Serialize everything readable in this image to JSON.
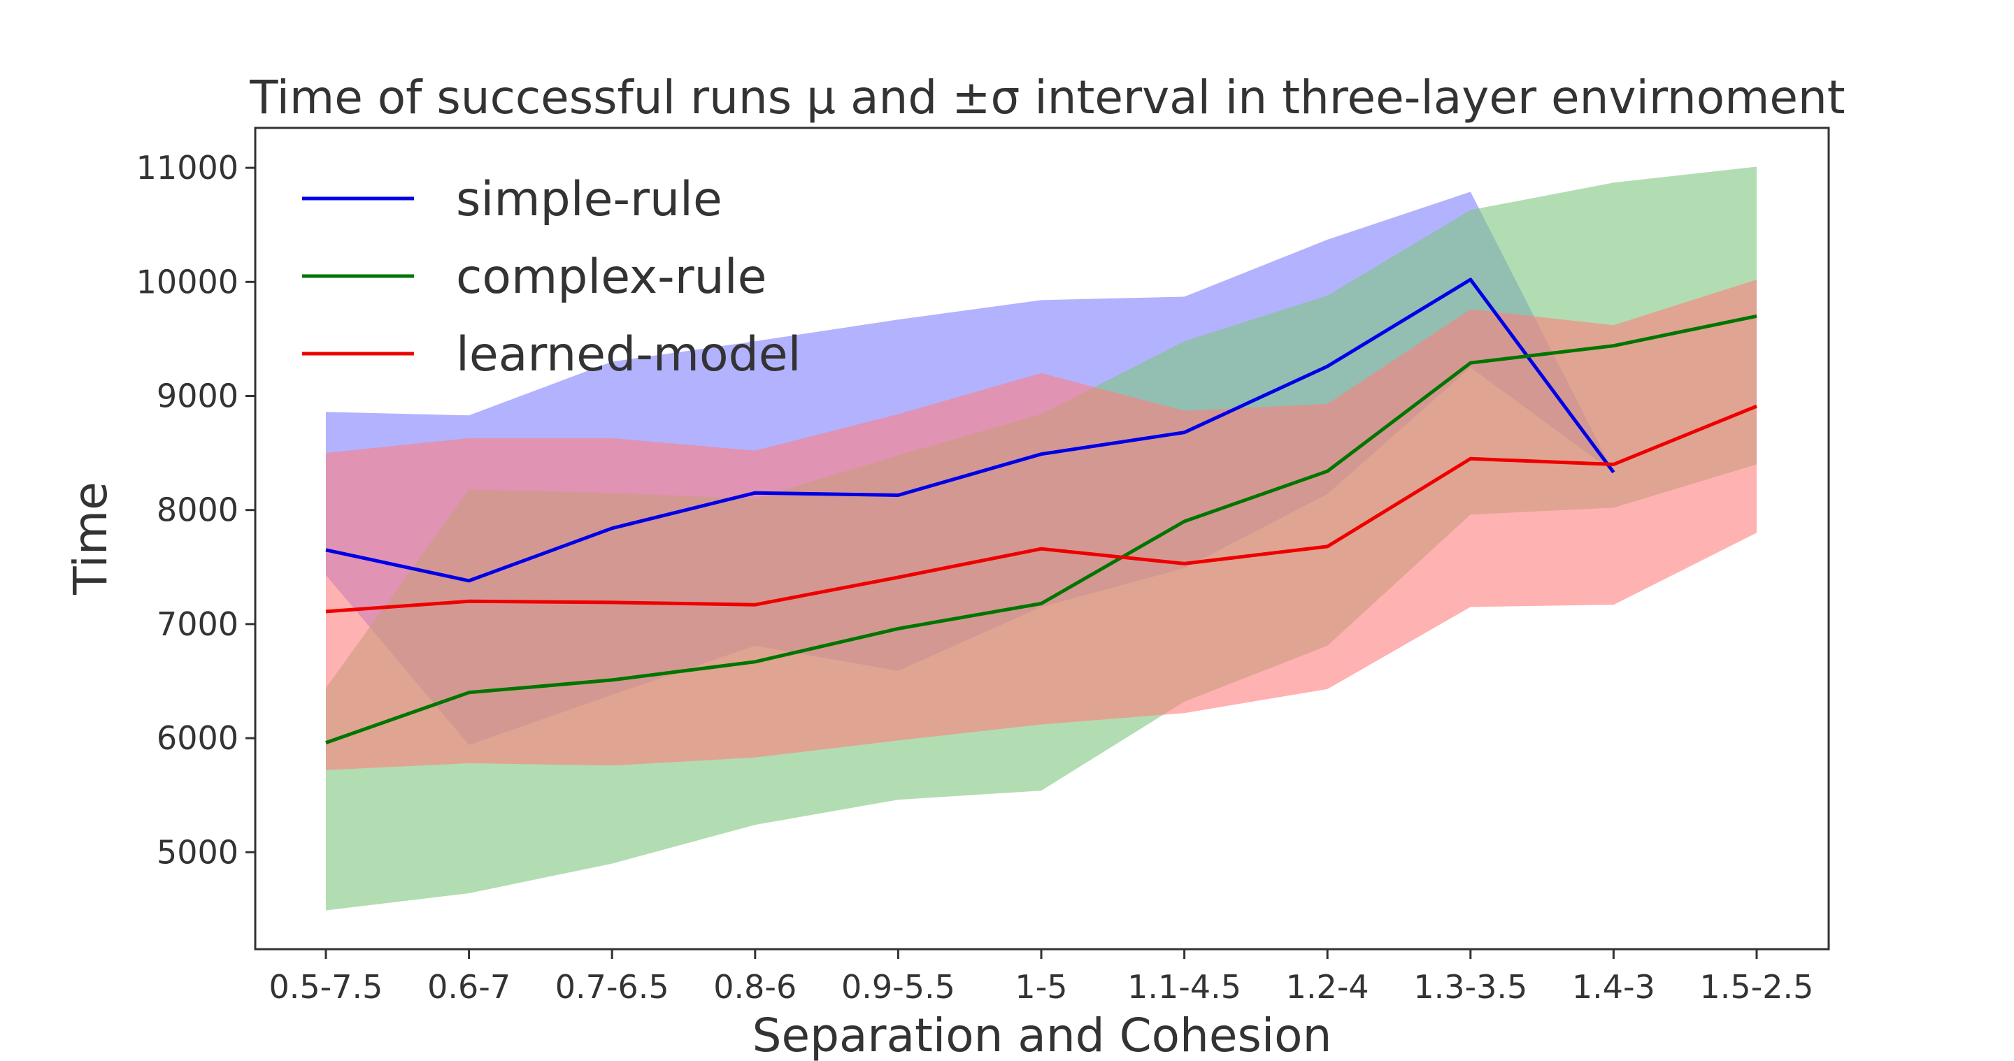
{
  "chart_data": {
    "type": "line",
    "title": "Time of successful runs μ and ±σ interval in three-layer envirnoment",
    "xlabel": "Separation and Cohesion",
    "ylabel": "Time",
    "categories": [
      "0.5-7.5",
      "0.6-7",
      "0.7-6.5",
      "0.8-6",
      "0.9-5.5",
      "1-5",
      "1.1-4.5",
      "1.2-4",
      "1.3-3.5",
      "1.4-3",
      "1.5-2.5"
    ],
    "ylim": [
      4150,
      11350
    ],
    "yticks": [
      5000,
      6000,
      7000,
      8000,
      9000,
      10000,
      11000
    ],
    "ytick_labels": [
      "5000",
      "6000",
      "7000",
      "8000",
      "9000",
      "10000",
      "11000"
    ],
    "grid": false,
    "legend_position": "top-left",
    "series": [
      {
        "name": "simple-rule",
        "color": "#0000e6",
        "band_color": "#7f7fff",
        "band_opacity": 0.6,
        "values": [
          7650,
          7380,
          7840,
          8150,
          8130,
          8490,
          8680,
          9260,
          10020,
          8330,
          null
        ],
        "upper": [
          8860,
          8830,
          9300,
          9480,
          9670,
          9840,
          9870,
          10370,
          10790,
          8330,
          null
        ],
        "lower": [
          7430,
          5940,
          6380,
          6810,
          6590,
          7150,
          7490,
          8140,
          9250,
          8330,
          null
        ]
      },
      {
        "name": "complex-rule",
        "color": "#007500",
        "band_color": "#7fc77f",
        "band_opacity": 0.6,
        "values": [
          5960,
          6400,
          6510,
          6670,
          6960,
          7180,
          7900,
          8340,
          9290,
          9440,
          9700
        ],
        "upper": [
          6440,
          8180,
          8150,
          8100,
          8480,
          8840,
          9480,
          9880,
          10630,
          10870,
          11010
        ],
        "lower": [
          4490,
          4640,
          4900,
          5240,
          5460,
          5540,
          6320,
          6810,
          7960,
          8020,
          8400
        ]
      },
      {
        "name": "learned-model",
        "color": "#ee0000",
        "band_color": "#ff7f7f",
        "band_opacity": 0.6,
        "values": [
          7110,
          7200,
          7190,
          7170,
          7410,
          7660,
          7530,
          7680,
          8450,
          8400,
          8910
        ],
        "upper": [
          8500,
          8630,
          8630,
          8520,
          8840,
          9200,
          8870,
          8930,
          9760,
          9620,
          10020
        ],
        "lower": [
          5720,
          5780,
          5760,
          5830,
          5980,
          6120,
          6220,
          6430,
          7150,
          7170,
          7800
        ]
      }
    ]
  }
}
